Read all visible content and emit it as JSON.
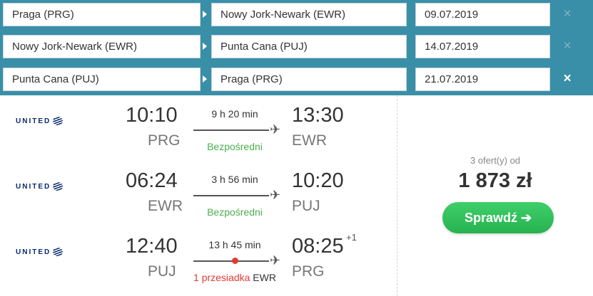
{
  "legs": [
    {
      "from": "Praga (PRG)",
      "to": "Nowy Jork-Newark (EWR)",
      "date": "09.07.2019",
      "remove": "×"
    },
    {
      "from": "Nowy Jork-Newark (EWR)",
      "to": "Punta Cana (PUJ)",
      "date": "14.07.2019",
      "remove": "×"
    },
    {
      "from": "Punta Cana (PUJ)",
      "to": "Praga (PRG)",
      "date": "21.07.2019",
      "remove": "×"
    }
  ],
  "flights": [
    {
      "airline": "UNITED",
      "dep_time": "10:10",
      "dep_code": "PRG",
      "duration": "9 h 20 min",
      "stops": "Bezpośredni",
      "arr_time": "13:30",
      "arr_code": "EWR"
    },
    {
      "airline": "UNITED",
      "dep_time": "06:24",
      "dep_code": "EWR",
      "duration": "3 h 56 min",
      "stops": "Bezpośredni",
      "arr_time": "10:20",
      "arr_code": "PUJ"
    },
    {
      "airline": "UNITED",
      "dep_time": "12:40",
      "dep_code": "PUJ",
      "duration": "13 h 45 min",
      "stops": "1 przesiadka",
      "stop_via": "EWR",
      "arr_time": "08:25",
      "arr_day_offset": "+1",
      "arr_code": "PRG"
    }
  ],
  "offer": {
    "offers_text": "3 ofert(y) od",
    "price": "1 873 zł",
    "button": "Sprawdź ➔"
  },
  "colors": {
    "header_bg": "#3a8fa8",
    "direct": "#4caf50",
    "stop": "#e53935",
    "button": "#27b24f"
  },
  "icons": [
    "plane-icon",
    "close-icon",
    "united-globe-icon"
  ]
}
